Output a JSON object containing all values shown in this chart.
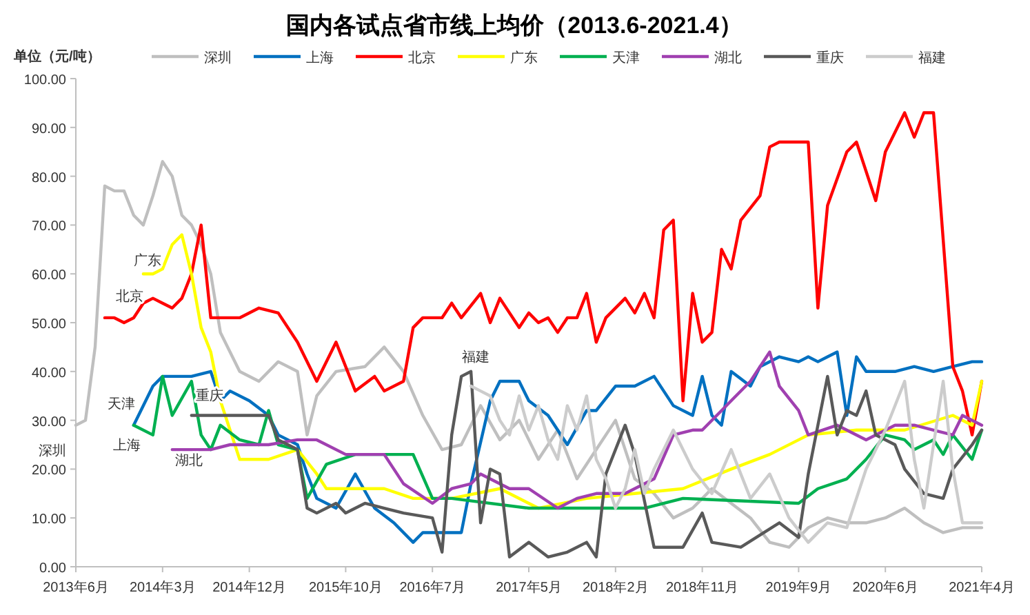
{
  "chart_data": {
    "type": "line",
    "title": "国内各试点省市线上均价（2013.6-2021.4）",
    "ylabel": "单位（元/吨）",
    "legend": "top",
    "xlim": [
      "2013-06",
      "2021-04"
    ],
    "xticks": [
      {
        "value": "2013-06",
        "label": "2013年6月"
      },
      {
        "value": "2014-03",
        "label": "2014年3月"
      },
      {
        "value": "2014-12",
        "label": "2014年12月"
      },
      {
        "value": "2015-10",
        "label": "2015年10月"
      },
      {
        "value": "2016-07",
        "label": "2016年7月"
      },
      {
        "value": "2017-05",
        "label": "2017年5月"
      },
      {
        "value": "2018-02",
        "label": "2018年2月"
      },
      {
        "value": "2018-11",
        "label": "2018年11月"
      },
      {
        "value": "2019-09",
        "label": "2019年9月"
      },
      {
        "value": "2020-06",
        "label": "2020年6月"
      },
      {
        "value": "2021-04",
        "label": "2021年4月"
      }
    ],
    "ylim": [
      0,
      100
    ],
    "yticks": [
      {
        "value": 0,
        "label": "0.00"
      },
      {
        "value": 10,
        "label": "10.00"
      },
      {
        "value": 20,
        "label": "20.00"
      },
      {
        "value": 30,
        "label": "30.00"
      },
      {
        "value": 40,
        "label": "40.00"
      },
      {
        "value": 50,
        "label": "50.00"
      },
      {
        "value": 60,
        "label": "60.00"
      },
      {
        "value": 70,
        "label": "70.00"
      },
      {
        "value": 80,
        "label": "80.00"
      },
      {
        "value": 90,
        "label": "90.00"
      },
      {
        "value": 100,
        "label": "100.00"
      }
    ],
    "annotations": [
      "深圳",
      "上海",
      "广东",
      "北京",
      "天津",
      "重庆",
      "湖北",
      "福建"
    ],
    "series": [
      {
        "name": "深圳",
        "color": "#bfbfbf",
        "x": [
          "2013-06",
          "2013-07",
          "2013-08",
          "2013-09",
          "2013-10",
          "2013-11",
          "2013-12",
          "2014-01",
          "2014-02",
          "2014-03",
          "2014-04",
          "2014-05",
          "2014-06",
          "2014-07",
          "2014-08",
          "2014-09",
          "2014-11",
          "2015-01",
          "2015-03",
          "2015-05",
          "2015-06",
          "2015-07",
          "2015-09",
          "2015-12",
          "2016-02",
          "2016-04",
          "2016-06",
          "2016-08",
          "2016-10",
          "2016-12",
          "2017-02",
          "2017-04",
          "2017-06",
          "2017-08",
          "2017-10",
          "2017-12",
          "2018-02",
          "2018-04",
          "2018-06",
          "2018-08",
          "2018-10",
          "2018-12",
          "2019-02",
          "2019-04",
          "2019-06",
          "2019-08",
          "2019-10",
          "2019-12",
          "2020-02",
          "2020-04",
          "2020-06",
          "2020-08",
          "2020-10",
          "2020-12",
          "2021-02",
          "2021-04"
        ],
        "values": [
          29,
          30,
          45,
          78,
          77,
          77,
          72,
          70,
          76,
          83,
          80,
          72,
          70,
          66,
          60,
          48,
          40,
          38,
          42,
          40,
          27,
          35,
          40,
          41,
          45,
          40,
          31,
          24,
          25,
          33,
          26,
          30,
          22,
          28,
          18,
          24,
          30,
          18,
          15,
          10,
          12,
          16,
          13,
          10,
          5,
          4,
          8,
          10,
          9,
          9,
          10,
          12,
          9,
          7,
          8,
          8
        ]
      },
      {
        "name": "上海",
        "color": "#0070c0",
        "x": [
          "2013-12",
          "2014-02",
          "2014-03",
          "2014-06",
          "2014-08",
          "2014-09",
          "2014-10",
          "2014-12",
          "2015-02",
          "2015-03",
          "2015-05",
          "2015-06",
          "2015-07",
          "2015-09",
          "2015-11",
          "2016-01",
          "2016-03",
          "2016-05",
          "2016-06",
          "2016-10",
          "2016-11",
          "2017-01",
          "2017-02",
          "2017-04",
          "2017-05",
          "2017-07",
          "2017-09",
          "2017-11",
          "2017-12",
          "2018-02",
          "2018-04",
          "2018-06",
          "2018-08",
          "2018-10",
          "2018-11",
          "2018-12",
          "2019-01",
          "2019-02",
          "2019-04",
          "2019-05",
          "2019-07",
          "2019-09",
          "2019-10",
          "2019-11",
          "2019-12",
          "2020-01",
          "2020-02",
          "2020-03",
          "2020-04",
          "2020-07",
          "2020-09",
          "2020-11",
          "2021-01",
          "2021-03",
          "2021-04"
        ],
        "values": [
          29,
          37,
          39,
          39,
          40,
          34,
          36,
          34,
          31,
          27,
          25,
          19,
          14,
          12,
          19,
          12,
          9,
          5,
          7,
          7,
          17,
          34,
          38,
          38,
          34,
          31,
          25,
          32,
          32,
          37,
          37,
          39,
          33,
          31,
          39,
          31,
          29,
          40,
          37,
          41,
          43,
          42,
          43,
          42,
          43,
          44,
          31,
          43,
          40,
          40,
          41,
          40,
          41,
          42,
          42
        ]
      },
      {
        "name": "北京",
        "color": "#ff0000",
        "x": [
          "2013-09",
          "2013-10",
          "2013-11",
          "2013-12",
          "2014-01",
          "2014-02",
          "2014-03",
          "2014-04",
          "2014-05",
          "2014-06",
          "2014-07",
          "2014-08",
          "2014-09",
          "2014-11",
          "2015-01",
          "2015-03",
          "2015-05",
          "2015-07",
          "2015-09",
          "2015-11",
          "2016-01",
          "2016-02",
          "2016-04",
          "2016-05",
          "2016-06",
          "2016-08",
          "2016-09",
          "2016-10",
          "2016-12",
          "2017-01",
          "2017-02",
          "2017-04",
          "2017-05",
          "2017-06",
          "2017-07",
          "2017-08",
          "2017-09",
          "2017-10",
          "2017-11",
          "2017-12",
          "2018-01",
          "2018-03",
          "2018-04",
          "2018-05",
          "2018-06",
          "2018-07",
          "2018-08",
          "2018-09",
          "2018-10",
          "2018-11",
          "2018-12",
          "2019-01",
          "2019-02",
          "2019-03",
          "2019-05",
          "2019-06",
          "2019-07",
          "2019-09",
          "2019-10",
          "2019-11",
          "2019-12",
          "2020-02",
          "2020-03",
          "2020-05",
          "2020-06",
          "2020-08",
          "2020-09",
          "2020-10",
          "2020-11",
          "2021-01",
          "2021-02",
          "2021-03",
          "2021-04"
        ],
        "values": [
          51,
          51,
          50,
          51,
          54,
          55,
          54,
          53,
          55,
          60,
          70,
          51,
          51,
          51,
          53,
          52,
          46,
          38,
          46,
          36,
          39,
          36,
          38,
          49,
          51,
          51,
          54,
          51,
          56,
          50,
          55,
          49,
          52,
          50,
          51,
          48,
          51,
          51,
          56,
          46,
          51,
          55,
          52,
          56,
          51,
          69,
          71,
          34,
          56,
          46,
          48,
          65,
          61,
          71,
          76,
          86,
          87,
          87,
          87,
          53,
          74,
          85,
          87,
          75,
          85,
          93,
          88,
          93,
          93,
          41,
          36,
          27,
          38
        ]
      },
      {
        "name": "广东",
        "color": "#ffff00",
        "x": [
          "2014-01",
          "2014-02",
          "2014-03",
          "2014-04",
          "2014-05",
          "2014-06",
          "2014-07",
          "2014-08",
          "2014-09",
          "2014-11",
          "2015-02",
          "2015-05",
          "2015-07",
          "2015-08",
          "2015-11",
          "2016-02",
          "2016-05",
          "2016-09",
          "2017-02",
          "2017-06",
          "2017-11",
          "2018-04",
          "2018-09",
          "2019-02",
          "2019-06",
          "2019-10",
          "2020-03",
          "2020-08",
          "2021-01",
          "2021-03",
          "2021-04"
        ],
        "values": [
          60,
          60,
          61,
          66,
          68,
          60,
          49,
          44,
          34,
          22,
          22,
          24,
          19,
          16,
          16,
          16,
          14,
          14,
          16,
          12,
          14,
          15,
          16,
          20,
          23,
          27,
          28,
          28,
          31,
          29,
          38
        ]
      },
      {
        "name": "天津",
        "color": "#00b050",
        "x": [
          "2013-12",
          "2014-02",
          "2014-03",
          "2014-04",
          "2014-06",
          "2014-07",
          "2014-08",
          "2014-09",
          "2014-11",
          "2015-01",
          "2015-02",
          "2015-03",
          "2015-05",
          "2015-06",
          "2015-08",
          "2015-11",
          "2016-02",
          "2016-05",
          "2016-07",
          "2016-09",
          "2017-05",
          "2017-11",
          "2018-05",
          "2018-09",
          "2019-09",
          "2019-11",
          "2020-02",
          "2020-04",
          "2020-06",
          "2020-08",
          "2020-09",
          "2020-11",
          "2020-12",
          "2021-01",
          "2021-03",
          "2021-04"
        ],
        "values": [
          29,
          27,
          39,
          31,
          38,
          27,
          24,
          29,
          26,
          25,
          32,
          25,
          24,
          14,
          21,
          23,
          23,
          23,
          14,
          14,
          12,
          12,
          12,
          14,
          13,
          16,
          18,
          22,
          27,
          26,
          24,
          26,
          23,
          27,
          22,
          28
        ]
      },
      {
        "name": "湖北",
        "color": "#a040b0",
        "x": [
          "2014-04",
          "2014-08",
          "2014-10",
          "2015-02",
          "2015-05",
          "2015-07",
          "2015-10",
          "2016-02",
          "2016-04",
          "2016-07",
          "2016-09",
          "2016-11",
          "2016-12",
          "2017-03",
          "2017-05",
          "2017-08",
          "2017-10",
          "2017-12",
          "2018-03",
          "2018-06",
          "2018-08",
          "2018-10",
          "2018-11",
          "2019-01",
          "2019-02",
          "2019-04",
          "2019-06",
          "2019-07",
          "2019-09",
          "2019-10",
          "2020-01",
          "2020-04",
          "2020-07",
          "2020-09",
          "2020-11",
          "2021-01",
          "2021-02",
          "2021-04"
        ],
        "values": [
          24,
          24,
          25,
          25,
          26,
          26,
          23,
          23,
          17,
          13,
          16,
          17,
          19,
          16,
          16,
          12,
          14,
          15,
          15,
          18,
          27,
          28,
          28,
          32,
          34,
          38,
          44,
          37,
          32,
          27,
          29,
          26,
          29,
          29,
          28,
          27,
          31,
          29
        ]
      },
      {
        "name": "重庆",
        "color": "#595959",
        "x": [
          "2014-06",
          "2015-02",
          "2015-03",
          "2015-05",
          "2015-06",
          "2015-07",
          "2015-09",
          "2015-10",
          "2015-12",
          "2016-02",
          "2016-04",
          "2016-07",
          "2016-08",
          "2016-09",
          "2016-10",
          "2016-11",
          "2016-12",
          "2017-01",
          "2017-02",
          "2017-03",
          "2017-05",
          "2017-07",
          "2017-09",
          "2017-11",
          "2017-12",
          "2018-01",
          "2018-03",
          "2018-04",
          "2018-06",
          "2018-09",
          "2018-11",
          "2018-12",
          "2019-03",
          "2019-07",
          "2019-09",
          "2019-10",
          "2019-12",
          "2020-01",
          "2020-02",
          "2020-03",
          "2020-04",
          "2020-05",
          "2020-07",
          "2020-08",
          "2020-10",
          "2020-12",
          "2021-01",
          "2021-03",
          "2021-04"
        ],
        "values": [
          31,
          31,
          26,
          24,
          12,
          11,
          13,
          11,
          13,
          12,
          11,
          10,
          3,
          27,
          39,
          40,
          9,
          20,
          19,
          2,
          5,
          2,
          3,
          5,
          2,
          19,
          29,
          23,
          4,
          4,
          11,
          5,
          4,
          9,
          6,
          19,
          39,
          27,
          32,
          31,
          36,
          27,
          25,
          20,
          15,
          14,
          20,
          25,
          28
        ]
      },
      {
        "name": "福建",
        "color": "#cccccc",
        "x": [
          "2016-11",
          "2016-12",
          "2017-01",
          "2017-02",
          "2017-03",
          "2017-04",
          "2017-05",
          "2017-06",
          "2017-07",
          "2017-08",
          "2017-09",
          "2017-10",
          "2017-11",
          "2017-12",
          "2018-01",
          "2018-02",
          "2018-03",
          "2018-04",
          "2018-05",
          "2018-06",
          "2018-08",
          "2018-10",
          "2018-12",
          "2019-02",
          "2019-04",
          "2019-06",
          "2019-08",
          "2019-10",
          "2019-12",
          "2020-02",
          "2020-04",
          "2020-06",
          "2020-08",
          "2020-09",
          "2020-10",
          "2020-11",
          "2020-12",
          "2021-01",
          "2021-02",
          "2021-04"
        ],
        "values": [
          37,
          36,
          35,
          30,
          27,
          35,
          28,
          33,
          26,
          22,
          33,
          28,
          35,
          22,
          18,
          12,
          16,
          24,
          15,
          20,
          28,
          20,
          15,
          24,
          14,
          19,
          10,
          5,
          9,
          8,
          20,
          28,
          38,
          22,
          12,
          25,
          38,
          20,
          9,
          9
        ]
      }
    ]
  }
}
